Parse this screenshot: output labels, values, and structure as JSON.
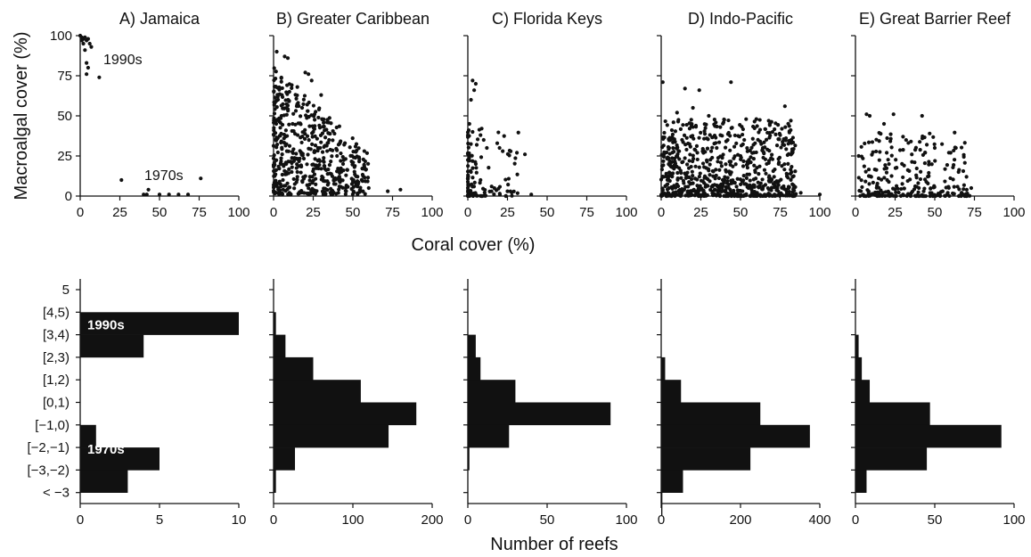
{
  "figure": {
    "scatter_ylabel": "Macroalgal cover (%)",
    "scatter_xlabel": "Coral cover (%)",
    "hist_xlabel": "Number of reefs",
    "hist_categories": [
      "5",
      "[4,5)",
      "[3,4)",
      "[2,3)",
      "[1,2)",
      "[0,1)",
      "[−1,0)",
      "[−2,−1)",
      "[−3,−2)",
      "< −3"
    ]
  },
  "chart_data": [
    {
      "type": "scatter",
      "title": "A) Jamaica",
      "xlabel": "Coral cover (%)",
      "ylabel": "Macroalgal cover (%)",
      "xlim": [
        0,
        100
      ],
      "ylim": [
        0,
        100
      ],
      "xticks": [
        "0",
        "25",
        "50",
        "75",
        "100"
      ],
      "yticks": [
        "0",
        "25",
        "50",
        "75",
        "100"
      ],
      "annotations": [
        "1990s",
        "1970s"
      ],
      "points": [
        [
          0,
          100
        ],
        [
          1,
          99
        ],
        [
          2,
          98
        ],
        [
          3,
          99
        ],
        [
          1,
          97
        ],
        [
          2,
          95
        ],
        [
          4,
          97
        ],
        [
          3,
          91
        ],
        [
          5,
          98
        ],
        [
          6,
          95
        ],
        [
          7,
          93
        ],
        [
          4,
          83
        ],
        [
          5,
          80
        ],
        [
          4,
          76
        ],
        [
          12,
          74
        ],
        [
          26,
          10
        ],
        [
          40,
          1
        ],
        [
          42,
          1
        ],
        [
          43,
          4
        ],
        [
          50,
          1
        ],
        [
          56,
          1
        ],
        [
          62,
          1
        ],
        [
          68,
          1
        ],
        [
          76,
          11
        ]
      ]
    },
    {
      "type": "scatter",
      "title": "B) Greater Caribbean",
      "xlabel": "Coral cover (%)",
      "xlim": [
        0,
        100
      ],
      "ylim": [
        0,
        100
      ],
      "xticks": [
        "0",
        "25",
        "50",
        "75",
        "100"
      ],
      "points": "dense cloud of roughly 600 reefs; coral 0-85, macroalgae 0-95, concentrated near the origin",
      "sample_points": [
        [
          2,
          90
        ],
        [
          7,
          87
        ],
        [
          9,
          86
        ],
        [
          20,
          77
        ],
        [
          22,
          76
        ],
        [
          24,
          72
        ],
        [
          15,
          68
        ],
        [
          10,
          65
        ],
        [
          30,
          63
        ],
        [
          18,
          55
        ],
        [
          5,
          50
        ],
        [
          12,
          45
        ],
        [
          25,
          40
        ],
        [
          35,
          35
        ],
        [
          45,
          33
        ],
        [
          28,
          30
        ],
        [
          40,
          25
        ],
        [
          8,
          20
        ],
        [
          15,
          15
        ],
        [
          50,
          10
        ],
        [
          60,
          5
        ],
        [
          72,
          3
        ],
        [
          80,
          4
        ],
        [
          3,
          5
        ],
        [
          10,
          2
        ]
      ]
    },
    {
      "type": "scatter",
      "title": "C) Florida Keys",
      "xlabel": "Coral cover (%)",
      "xlim": [
        0,
        100
      ],
      "ylim": [
        0,
        100
      ],
      "xticks": [
        "0",
        "25",
        "50",
        "75",
        "100"
      ],
      "sample_points": [
        [
          3,
          72
        ],
        [
          5,
          70
        ],
        [
          4,
          66
        ],
        [
          2,
          60
        ],
        [
          1,
          45
        ],
        [
          3,
          40
        ],
        [
          8,
          38
        ],
        [
          10,
          35
        ],
        [
          12,
          30
        ],
        [
          20,
          30
        ],
        [
          22,
          28
        ],
        [
          36,
          26
        ],
        [
          5,
          20
        ],
        [
          2,
          15
        ],
        [
          8,
          10
        ],
        [
          15,
          6
        ],
        [
          25,
          3
        ],
        [
          40,
          1
        ],
        [
          2,
          2
        ],
        [
          5,
          1
        ]
      ]
    },
    {
      "type": "scatter",
      "title": "D) Indo-Pacific",
      "xlabel": "Coral cover (%)",
      "xlim": [
        0,
        100
      ],
      "ylim": [
        0,
        100
      ],
      "xticks": [
        "0",
        "25",
        "50",
        "75",
        "100"
      ],
      "sample_points": [
        [
          1,
          71
        ],
        [
          15,
          67
        ],
        [
          24,
          66
        ],
        [
          44,
          71
        ],
        [
          78,
          56
        ],
        [
          10,
          52
        ],
        [
          20,
          55
        ],
        [
          30,
          50
        ],
        [
          60,
          48
        ],
        [
          75,
          38
        ],
        [
          82,
          35
        ],
        [
          5,
          30
        ],
        [
          35,
          30
        ],
        [
          50,
          25
        ],
        [
          68,
          22
        ],
        [
          88,
          2
        ],
        [
          100,
          1
        ],
        [
          40,
          10
        ],
        [
          20,
          8
        ],
        [
          55,
          5
        ]
      ]
    },
    {
      "type": "scatter",
      "title": "E) Great Barrier Reef",
      "xlabel": "Coral cover (%)",
      "xlim": [
        0,
        100
      ],
      "ylim": [
        0,
        100
      ],
      "xticks": [
        "0",
        "25",
        "50",
        "75",
        "100"
      ],
      "sample_points": [
        [
          7,
          51
        ],
        [
          9,
          50
        ],
        [
          24,
          51
        ],
        [
          42,
          50
        ],
        [
          18,
          45
        ],
        [
          30,
          37
        ],
        [
          35,
          34
        ],
        [
          45,
          32
        ],
        [
          50,
          30
        ],
        [
          60,
          27
        ],
        [
          70,
          12
        ],
        [
          73,
          5
        ],
        [
          65,
          15
        ],
        [
          10,
          12
        ],
        [
          20,
          10
        ],
        [
          2,
          25
        ],
        [
          40,
          5
        ],
        [
          55,
          3
        ],
        [
          15,
          2
        ],
        [
          30,
          1
        ]
      ]
    },
    {
      "type": "bar",
      "orientation": "horizontal",
      "panel": "A) Jamaica",
      "xlabel": "Number of reefs",
      "xlim": [
        0,
        10
      ],
      "xticks": [
        "0",
        "5",
        "10"
      ],
      "categories": [
        "5",
        "[4,5)",
        "[3,4)",
        "[2,3)",
        "[1,2)",
        "[0,1)",
        "[−1,0)",
        "[−2,−1)",
        "[−3,−2)",
        "< −3"
      ],
      "values": [
        0,
        10,
        4,
        0,
        0,
        0,
        1,
        5,
        3,
        0
      ],
      "labels": [
        "1990s",
        "1970s"
      ]
    },
    {
      "type": "bar",
      "orientation": "horizontal",
      "panel": "B) Greater Caribbean",
      "xlim": [
        0,
        200
      ],
      "xticks": [
        "0",
        "100",
        "200"
      ],
      "values": [
        0,
        3,
        15,
        50,
        110,
        180,
        145,
        27,
        3,
        0
      ]
    },
    {
      "type": "bar",
      "orientation": "horizontal",
      "panel": "C) Florida Keys",
      "xlim": [
        0,
        100
      ],
      "xticks": [
        "0",
        "50",
        "100"
      ],
      "values": [
        0,
        0,
        5,
        8,
        30,
        90,
        26,
        1,
        0,
        0
      ]
    },
    {
      "type": "bar",
      "orientation": "horizontal",
      "panel": "D) Indo-Pacific",
      "xlim": [
        0,
        400
      ],
      "xticks": [
        "0",
        "200",
        "400"
      ],
      "values": [
        0,
        0,
        0,
        10,
        50,
        250,
        375,
        225,
        55,
        3
      ]
    },
    {
      "type": "bar",
      "orientation": "horizontal",
      "panel": "E) Great Barrier Reef",
      "xlim": [
        0,
        100
      ],
      "xticks": [
        "0",
        "50",
        "100"
      ],
      "values": [
        0,
        0,
        2,
        4,
        9,
        47,
        92,
        45,
        7,
        0
      ]
    }
  ]
}
